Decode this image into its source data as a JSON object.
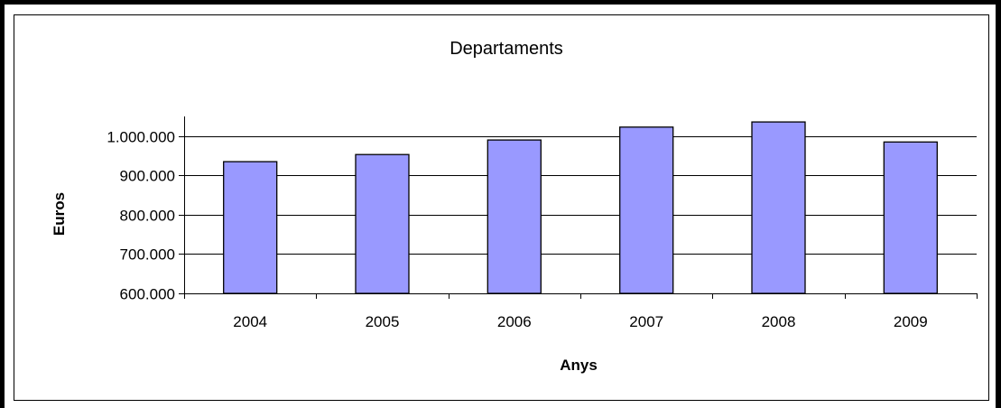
{
  "chart_data": {
    "type": "bar",
    "title": "Departaments",
    "xlabel": "Anys",
    "ylabel": "Euros",
    "categories": [
      "2004",
      "2005",
      "2006",
      "2007",
      "2008",
      "2009"
    ],
    "values": [
      935000,
      953000,
      990000,
      1023000,
      1036000,
      985000
    ],
    "ylim": [
      600000,
      1050000
    ],
    "yticks": [
      600000,
      700000,
      800000,
      900000,
      1000000
    ],
    "ytick_labels": [
      "600.000",
      "700.000",
      "800.000",
      "900.000",
      "1.000.000"
    ],
    "grid": true,
    "legend": "none",
    "colors": {
      "bar_fill": "#9999ff",
      "bar_stroke": "#000000",
      "grid": "#000000",
      "axis": "#000000"
    }
  }
}
